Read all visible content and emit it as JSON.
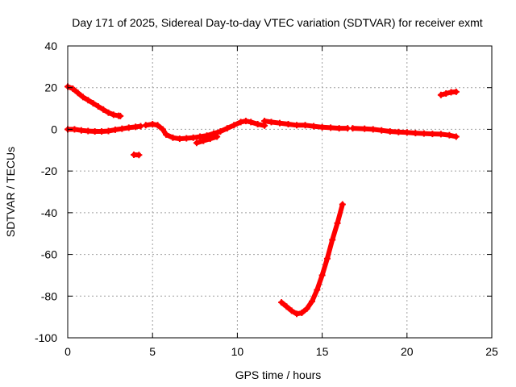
{
  "chart_data": {
    "type": "scatter",
    "title": "Day 171 of 2025, Sidereal Day-to-day VTEC variation (SDTVAR) for receiver exmt",
    "xlabel": "GPS time / hours",
    "ylabel": "SDTVAR / TECUs",
    "xlim": [
      0,
      25
    ],
    "ylim": [
      -100,
      40
    ],
    "xticks": [
      0,
      5,
      10,
      15,
      20,
      25
    ],
    "yticks": [
      -100,
      -80,
      -60,
      -40,
      -20,
      0,
      20,
      40
    ],
    "grid": true,
    "legend": "none",
    "marker_color": "#ff0000",
    "series": [
      {
        "name": "segment-1",
        "points": [
          [
            0.0,
            20.5
          ],
          [
            0.3,
            19.5
          ],
          [
            0.6,
            17.5
          ],
          [
            0.9,
            15.5
          ],
          [
            1.2,
            14.0
          ],
          [
            1.5,
            12.5
          ],
          [
            1.8,
            11.0
          ],
          [
            2.1,
            9.5
          ],
          [
            2.4,
            8.0
          ],
          [
            2.7,
            7.0
          ],
          [
            3.0,
            6.5
          ],
          [
            3.1,
            6.4
          ]
        ]
      },
      {
        "name": "segment-2",
        "points": [
          [
            0.0,
            0.0
          ],
          [
            0.4,
            0.0
          ],
          [
            0.8,
            -0.5
          ],
          [
            1.2,
            -0.8
          ],
          [
            1.6,
            -1.0
          ],
          [
            2.0,
            -1.0
          ],
          [
            2.4,
            -0.8
          ],
          [
            2.8,
            -0.2
          ],
          [
            3.2,
            0.3
          ],
          [
            3.6,
            0.8
          ],
          [
            4.0,
            1.2
          ],
          [
            4.3,
            1.5
          ]
        ]
      },
      {
        "name": "segment-3",
        "points": [
          [
            3.9,
            -12.2
          ],
          [
            4.2,
            -12.3
          ]
        ]
      },
      {
        "name": "segment-4",
        "points": [
          [
            4.6,
            2.0
          ],
          [
            5.0,
            2.5
          ],
          [
            5.3,
            2.0
          ],
          [
            5.6,
            0.0
          ],
          [
            5.8,
            -2.5
          ],
          [
            6.2,
            -4.0
          ],
          [
            6.6,
            -4.5
          ],
          [
            7.0,
            -4.3
          ],
          [
            7.4,
            -4.0
          ],
          [
            7.8,
            -3.5
          ],
          [
            8.2,
            -3.0
          ],
          [
            8.6,
            -2.0
          ],
          [
            9.0,
            -1.0
          ],
          [
            9.4,
            0.5
          ],
          [
            9.8,
            2.0
          ],
          [
            10.2,
            3.5
          ],
          [
            10.5,
            4.0
          ],
          [
            10.8,
            3.5
          ],
          [
            11.2,
            2.5
          ],
          [
            11.6,
            1.8
          ]
        ]
      },
      {
        "name": "segment-5",
        "points": [
          [
            7.6,
            -6.5
          ],
          [
            8.0,
            -5.5
          ],
          [
            8.4,
            -4.5
          ],
          [
            8.8,
            -3.5
          ]
        ]
      },
      {
        "name": "segment-6",
        "points": [
          [
            11.6,
            4.0
          ],
          [
            12.0,
            3.5
          ],
          [
            12.5,
            3.0
          ],
          [
            13.0,
            2.5
          ],
          [
            13.5,
            2.0
          ],
          [
            14.0,
            2.0
          ],
          [
            14.5,
            1.5
          ],
          [
            15.0,
            1.0
          ],
          [
            15.5,
            0.8
          ],
          [
            16.0,
            0.5
          ],
          [
            16.5,
            0.5
          ]
        ]
      },
      {
        "name": "segment-7",
        "points": [
          [
            16.8,
            0.5
          ],
          [
            17.5,
            0.3
          ],
          [
            18.0,
            0.0
          ],
          [
            18.5,
            -0.5
          ],
          [
            19.0,
            -1.0
          ],
          [
            19.5,
            -1.3
          ],
          [
            20.0,
            -1.5
          ],
          [
            20.5,
            -1.8
          ],
          [
            21.0,
            -2.0
          ],
          [
            21.5,
            -2.2
          ],
          [
            22.0,
            -2.3
          ],
          [
            22.5,
            -2.8
          ],
          [
            22.9,
            -3.5
          ]
        ]
      },
      {
        "name": "segment-8",
        "points": [
          [
            22.0,
            16.5
          ],
          [
            22.3,
            17.2
          ],
          [
            22.6,
            17.8
          ],
          [
            22.9,
            18.0
          ]
        ]
      },
      {
        "name": "segment-9",
        "points": [
          [
            12.6,
            -83.0
          ],
          [
            12.9,
            -85.0
          ],
          [
            13.2,
            -87.0
          ],
          [
            13.5,
            -88.5
          ],
          [
            13.8,
            -88.0
          ],
          [
            14.1,
            -86.0
          ],
          [
            14.4,
            -82.5
          ],
          [
            14.7,
            -77.0
          ],
          [
            15.0,
            -70.0
          ],
          [
            15.3,
            -62.0
          ],
          [
            15.6,
            -53.0
          ],
          [
            15.9,
            -45.0
          ],
          [
            16.2,
            -36.0
          ]
        ]
      }
    ]
  }
}
